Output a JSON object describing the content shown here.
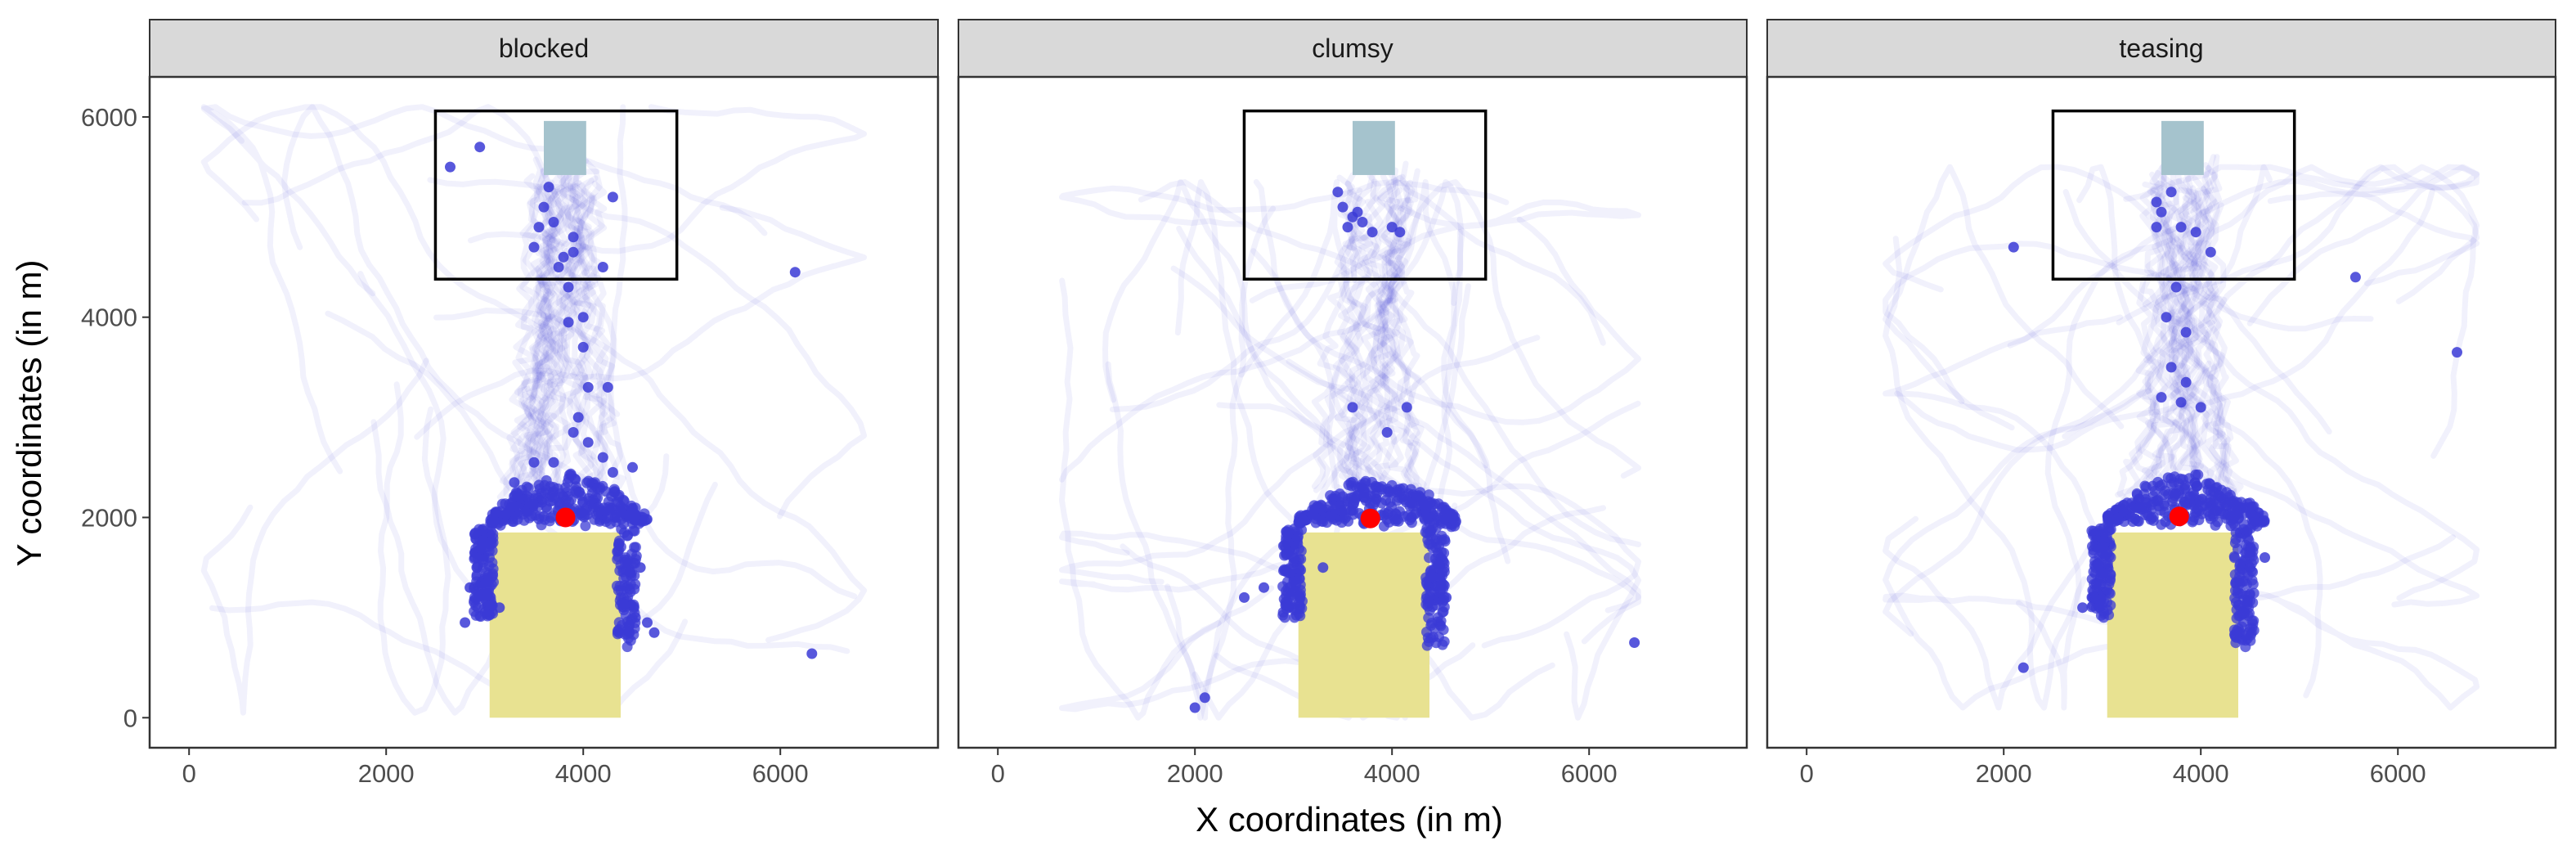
{
  "chart_data": {
    "type": "scatter",
    "facets": [
      "blocked",
      "clumsy",
      "teasing"
    ],
    "xlabel": "X coordinates (in m)",
    "ylabel": "Y coordinates (in m)",
    "xlim": [
      -400,
      7600
    ],
    "ylim": [
      -300,
      6400
    ],
    "x_ticks": [
      0,
      2000,
      4000,
      6000
    ],
    "y_ticks": [
      0,
      2000,
      4000,
      6000
    ],
    "grid": false,
    "colors": {
      "trajectory": "#3b3bd6",
      "endpoint": "#ff0000",
      "yellow_zone": "#e8e291",
      "blue_zone": "#a5c3cd",
      "box_outline": "#000000",
      "strip_fill": "#d9d9d9"
    },
    "regions": {
      "yellow_rect": {
        "x": [
          3050,
          4380
        ],
        "y": [
          0,
          1850
        ]
      },
      "blue_rect": {
        "x": [
          3600,
          4030
        ],
        "y": [
          5420,
          5960
        ]
      },
      "outlined_box": {
        "x": [
          2500,
          4950
        ],
        "y": [
          4380,
          6060
        ]
      }
    },
    "panels": [
      {
        "name": "blocked",
        "endpoint": [
          3820,
          2000
        ],
        "highlights": [
          [
            3600,
            5100
          ],
          [
            3700,
            4950
          ],
          [
            3900,
            4800
          ],
          [
            3500,
            4700
          ],
          [
            3800,
            4600
          ],
          [
            4200,
            4500
          ],
          [
            3750,
            4500
          ],
          [
            3900,
            4650
          ],
          [
            3550,
            4900
          ],
          [
            3650,
            5300
          ],
          [
            4300,
            5200
          ],
          [
            3850,
            4300
          ],
          [
            4000,
            4000
          ],
          [
            3850,
            3950
          ],
          [
            4000,
            3700
          ],
          [
            4250,
            3300
          ],
          [
            4050,
            3300
          ],
          [
            3950,
            3000
          ],
          [
            3900,
            2850
          ],
          [
            4050,
            2750
          ],
          [
            4200,
            2600
          ],
          [
            3700,
            2550
          ],
          [
            4300,
            2450
          ],
          [
            3500,
            2550
          ],
          [
            4500,
            2500
          ],
          [
            3300,
            2350
          ],
          [
            2900,
            1600
          ],
          [
            2850,
            1300
          ],
          [
            2800,
            950
          ],
          [
            3150,
            1100
          ],
          [
            4580,
            1500
          ],
          [
            4530,
            1000
          ],
          [
            4650,
            950
          ],
          [
            4720,
            850
          ],
          [
            6320,
            640
          ],
          [
            6150,
            4450
          ],
          [
            2650,
            5500
          ],
          [
            2950,
            5700
          ]
        ],
        "cluster": {
          "x": [
            3050,
            4650
          ],
          "y": [
            1500,
            2450
          ]
        },
        "trail_extent": {
          "x": [
            150,
            6850
          ],
          "y": [
            50,
            6100
          ]
        }
      },
      {
        "name": "clumsy",
        "endpoint": [
          3780,
          1990
        ],
        "highlights": [
          [
            3450,
            5250
          ],
          [
            3700,
            4950
          ],
          [
            3650,
            5050
          ],
          [
            3550,
            4900
          ],
          [
            4000,
            4900
          ],
          [
            3800,
            4850
          ],
          [
            4080,
            4850
          ],
          [
            3600,
            5000
          ],
          [
            3500,
            5100
          ],
          [
            4150,
            3100
          ],
          [
            3600,
            3100
          ],
          [
            3950,
            2850
          ],
          [
            2700,
            1300
          ],
          [
            2500,
            1200
          ],
          [
            2000,
            100
          ],
          [
            2100,
            200
          ],
          [
            6460,
            750
          ],
          [
            3300,
            1500
          ],
          [
            4550,
            1200
          ]
        ],
        "cluster": {
          "x": [
            3050,
            4650
          ],
          "y": [
            1500,
            2400
          ]
        },
        "trail_extent": {
          "x": [
            650,
            6500
          ],
          "y": [
            0,
            5350
          ]
        }
      },
      {
        "name": "teasing",
        "endpoint": [
          3780,
          2010
        ],
        "highlights": [
          [
            3550,
            5150
          ],
          [
            3600,
            5050
          ],
          [
            3700,
            5250
          ],
          [
            3800,
            4900
          ],
          [
            3550,
            4900
          ],
          [
            3950,
            4850
          ],
          [
            4100,
            4650
          ],
          [
            3750,
            4300
          ],
          [
            3650,
            4000
          ],
          [
            3850,
            3850
          ],
          [
            3700,
            3500
          ],
          [
            3850,
            3350
          ],
          [
            3800,
            3150
          ],
          [
            4000,
            3100
          ],
          [
            3600,
            3200
          ],
          [
            6600,
            3650
          ],
          [
            5570,
            4400
          ],
          [
            2100,
            4700
          ],
          [
            4650,
            1600
          ],
          [
            4500,
            1500
          ],
          [
            2800,
            1100
          ],
          [
            2900,
            1200
          ],
          [
            2200,
            500
          ]
        ],
        "cluster": {
          "x": [
            3050,
            4650
          ],
          "y": [
            1500,
            2450
          ]
        },
        "trail_extent": {
          "x": [
            800,
            6800
          ],
          "y": [
            100,
            5500
          ]
        }
      }
    ]
  }
}
